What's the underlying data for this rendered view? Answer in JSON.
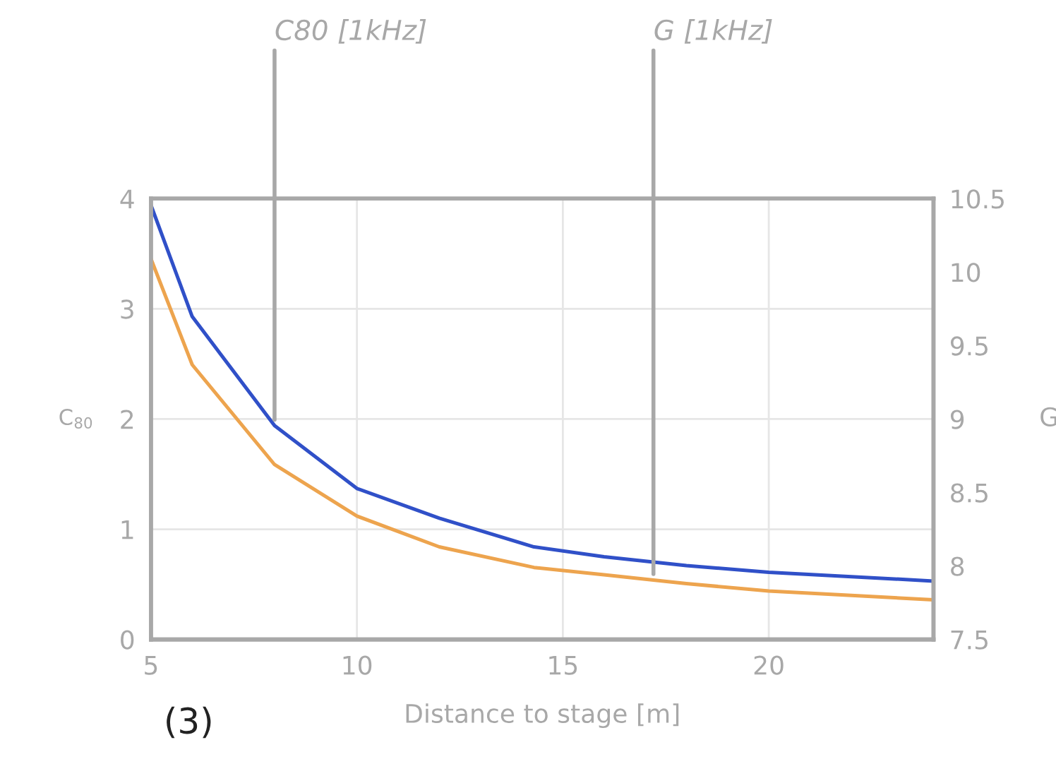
{
  "chart_data": {
    "type": "line",
    "xlabel": "Distance to stage [m]",
    "ylabel": "C$_{80}$",
    "y2label": "G",
    "x": [
      5,
      6,
      8,
      10,
      12,
      14.3,
      16,
      18,
      20,
      24
    ],
    "series": [
      {
        "color": "#3050c8",
        "values": [
          3.94,
          2.93,
          1.94,
          1.37,
          1.1,
          0.84,
          0.75,
          0.67,
          0.61,
          0.53
        ]
      },
      {
        "color": "#eda44e",
        "axis": "y2",
        "values": [
          10.09,
          9.37,
          8.69,
          8.34,
          8.13,
          7.99,
          7.94,
          7.88,
          7.83,
          7.77
        ]
      }
    ],
    "xlim": [
      5,
      24
    ],
    "xticks": [
      5,
      10,
      15,
      20
    ],
    "ylim": [
      0,
      4
    ],
    "yticks": [
      0,
      1,
      2,
      3,
      4
    ],
    "y2lim": [
      7.5,
      10.5
    ],
    "y2ticks": [
      7.5,
      8,
      8.5,
      9,
      9.5,
      10,
      10.5
    ],
    "grid": true,
    "marker": "none",
    "line_style": "solid",
    "annotations": [
      {
        "text": "C80 [1kHz]",
        "x": 8,
        "y": 1.94
      },
      {
        "text": "G [1kHz]",
        "x": 17.2,
        "y": 0.54
      },
      "(3)"
    ]
  }
}
